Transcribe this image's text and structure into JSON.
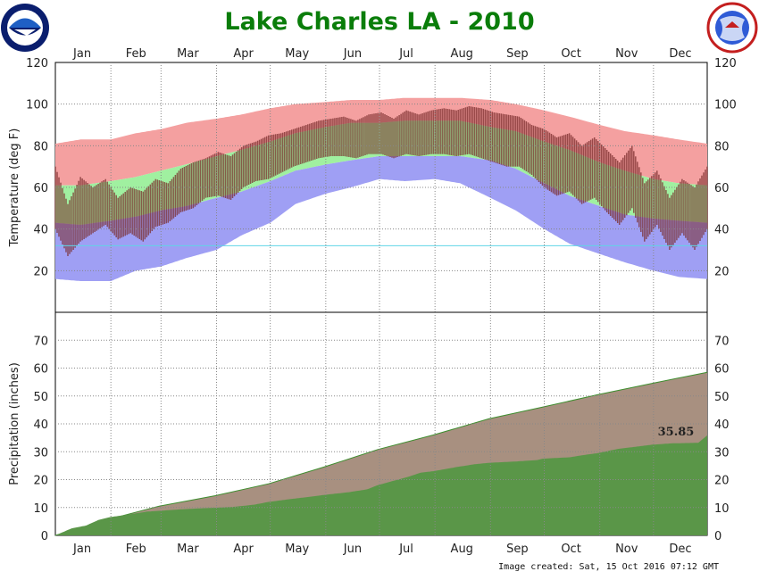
{
  "chart_data": [
    {
      "type": "area",
      "panel": "temperature",
      "title": "Lake Charles LA - 2010",
      "ylabel": "Temperature (deg F)",
      "ylim": [
        0,
        120
      ],
      "yticks": [
        20,
        40,
        60,
        80,
        100,
        120
      ],
      "months": [
        "Jan",
        "Feb",
        "Mar",
        "Apr",
        "May",
        "Jun",
        "Jul",
        "Aug",
        "Sep",
        "Oct",
        "Nov",
        "Dec"
      ],
      "grid": true,
      "reference_line": 32,
      "series": [
        {
          "key": "record_high",
          "x_days": [
            1,
            15,
            32,
            46,
            60,
            74,
            91,
            105,
            121,
            135,
            152,
            166,
            182,
            196,
            213,
            227,
            244,
            258,
            274,
            288,
            305,
            319,
            335,
            349,
            365
          ],
          "values": [
            81,
            83,
            83,
            86,
            88,
            91,
            93,
            95,
            98,
            100,
            101,
            102,
            102,
            103,
            103,
            103,
            102,
            100,
            97,
            94,
            90,
            87,
            85,
            83,
            81
          ],
          "color": "#f4a0a0"
        },
        {
          "key": "normal_high",
          "x_days": [
            1,
            15,
            32,
            46,
            60,
            74,
            91,
            105,
            121,
            135,
            152,
            166,
            182,
            196,
            213,
            227,
            244,
            258,
            274,
            288,
            305,
            319,
            335,
            349,
            365
          ],
          "values": [
            61,
            61,
            63,
            65,
            68,
            71,
            75,
            78,
            82,
            86,
            89,
            91,
            91,
            92,
            92,
            92,
            89,
            87,
            82,
            78,
            72,
            68,
            64,
            62,
            61
          ],
          "color": "#a0f0a0"
        },
        {
          "key": "normal_low",
          "x_days": [
            1,
            15,
            32,
            46,
            60,
            74,
            91,
            105,
            121,
            135,
            152,
            166,
            182,
            196,
            213,
            227,
            244,
            258,
            274,
            288,
            305,
            319,
            335,
            349,
            365
          ],
          "values": [
            43,
            42,
            44,
            46,
            49,
            51,
            55,
            58,
            63,
            68,
            71,
            73,
            75,
            75,
            75,
            75,
            73,
            69,
            62,
            56,
            51,
            47,
            45,
            44,
            43
          ],
          "color": "#9f9ff4"
        },
        {
          "key": "record_low",
          "x_days": [
            1,
            15,
            32,
            46,
            60,
            74,
            91,
            105,
            121,
            135,
            152,
            166,
            182,
            196,
            213,
            227,
            244,
            258,
            274,
            288,
            305,
            319,
            335,
            349,
            365
          ],
          "values": [
            16,
            15,
            15,
            20,
            22,
            26,
            30,
            37,
            43,
            52,
            57,
            60,
            64,
            63,
            64,
            62,
            55,
            49,
            40,
            33,
            28,
            24,
            20,
            17,
            16
          ],
          "color": "#ffffff"
        },
        {
          "key": "observed_high",
          "color": "#7b2d2d",
          "x_days": [
            1,
            8,
            15,
            22,
            29,
            36,
            43,
            50,
            57,
            64,
            71,
            78,
            85,
            92,
            99,
            106,
            113,
            120,
            127,
            134,
            141,
            148,
            155,
            162,
            169,
            176,
            183,
            190,
            197,
            204,
            211,
            218,
            225,
            232,
            239,
            246,
            253,
            260,
            267,
            274,
            281,
            288,
            295,
            302,
            309,
            316,
            323,
            330,
            337,
            344,
            351,
            358,
            365
          ],
          "values": [
            70,
            52,
            65,
            60,
            64,
            55,
            60,
            58,
            64,
            62,
            69,
            72,
            74,
            77,
            75,
            80,
            82,
            85,
            86,
            88,
            90,
            92,
            93,
            94,
            92,
            95,
            96,
            93,
            97,
            95,
            97,
            98,
            97,
            99,
            98,
            96,
            95,
            94,
            90,
            88,
            84,
            86,
            80,
            84,
            78,
            72,
            80,
            62,
            68,
            55,
            64,
            60,
            70
          ]
        },
        {
          "key": "observed_low",
          "color": "#3a3a78",
          "x_days": [
            1,
            8,
            15,
            22,
            29,
            36,
            43,
            50,
            57,
            64,
            71,
            78,
            85,
            92,
            99,
            106,
            113,
            120,
            127,
            134,
            141,
            148,
            155,
            162,
            169,
            176,
            183,
            190,
            197,
            204,
            211,
            218,
            225,
            232,
            239,
            246,
            253,
            260,
            267,
            274,
            281,
            288,
            295,
            302,
            309,
            316,
            323,
            330,
            337,
            344,
            351,
            358,
            365
          ],
          "values": [
            40,
            27,
            34,
            38,
            42,
            35,
            38,
            34,
            41,
            43,
            48,
            50,
            55,
            56,
            54,
            60,
            63,
            64,
            67,
            70,
            72,
            74,
            75,
            75,
            74,
            76,
            76,
            74,
            76,
            75,
            76,
            76,
            75,
            76,
            74,
            72,
            70,
            70,
            66,
            60,
            56,
            58,
            52,
            55,
            48,
            42,
            50,
            34,
            42,
            30,
            38,
            30,
            40
          ]
        }
      ]
    },
    {
      "type": "area",
      "panel": "precipitation",
      "ylabel": "Precipitation (inches)",
      "ylim": [
        0,
        80
      ],
      "yticks": [
        0,
        10,
        20,
        30,
        40,
        50,
        60,
        70
      ],
      "months": [
        "Jan",
        "Feb",
        "Mar",
        "Apr",
        "May",
        "Jun",
        "Jul",
        "Aug",
        "Sep",
        "Oct",
        "Nov",
        "Dec"
      ],
      "grid": true,
      "series": [
        {
          "key": "normal_cumulative",
          "color": "#a89080",
          "x_days": [
            1,
            31,
            59,
            90,
            120,
            151,
            181,
            212,
            243,
            273,
            304,
            334,
            365
          ],
          "values": [
            0,
            5.8,
            10.5,
            14.2,
            18.5,
            24.5,
            30.8,
            36.0,
            41.8,
            46.0,
            50.5,
            54.5,
            58.5
          ]
        },
        {
          "key": "observed_cumulative",
          "color": "#5a9648",
          "x_days": [
            1,
            10,
            18,
            25,
            31,
            42,
            52,
            59,
            70,
            82,
            90,
            100,
            112,
            120,
            132,
            145,
            151,
            165,
            175,
            181,
            198,
            205,
            212,
            225,
            235,
            243,
            258,
            270,
            273,
            288,
            298,
            304,
            315,
            334,
            345,
            360,
            365
          ],
          "values": [
            0,
            2.5,
            3.5,
            5.5,
            6.5,
            7.5,
            8.5,
            8.8,
            9.3,
            9.7,
            9.9,
            10.2,
            11.0,
            12.0,
            13.0,
            14.0,
            14.5,
            15.5,
            16.5,
            18.0,
            21.0,
            22.5,
            23.0,
            24.5,
            25.5,
            26.0,
            26.5,
            27.0,
            27.5,
            28.0,
            29.0,
            29.5,
            31.0,
            32.5,
            33.0,
            33.2,
            35.85
          ]
        }
      ],
      "annotation": "35.85"
    }
  ],
  "footer": {
    "image_created": "Image created: Sat, 15 Oct 2016 07:12 GMT"
  }
}
